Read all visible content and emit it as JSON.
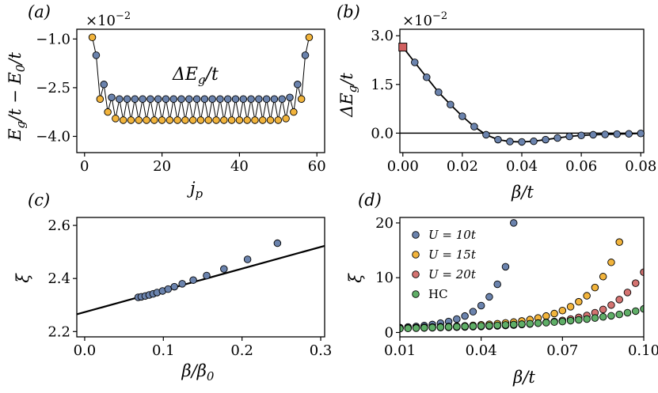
{
  "colors": {
    "blue": "#6b83ad",
    "orange": "#f2b43c",
    "red": "#d47371",
    "green": "#5fae67",
    "square": "#d16060"
  },
  "chart_data": [
    {
      "panel": "(a)",
      "type": "line",
      "xlabel": "j_p",
      "ylabel": "E_g/t − E_0/t",
      "scale_note": "×10^{−2}",
      "inset_label": "ΔE_g/t",
      "xlim": [
        -2,
        62
      ],
      "ylim": [
        -4.5,
        -0.7
      ],
      "xticks": [
        "0",
        "20",
        "40",
        "60"
      ],
      "xtick_values": [
        0,
        20,
        40,
        60
      ],
      "yticks": [
        "−1.0",
        "−2.5",
        "−4.0"
      ],
      "ytick_values": [
        -1.0,
        -2.5,
        -4.0
      ],
      "x": [
        2,
        3,
        4,
        5,
        6,
        7,
        8,
        9,
        10,
        11,
        12,
        13,
        14,
        15,
        16,
        17,
        18,
        19,
        20,
        21,
        22,
        23,
        24,
        25,
        26,
        27,
        28,
        29,
        30,
        31,
        32,
        33,
        34,
        35,
        36,
        37,
        38,
        39,
        40,
        41,
        42,
        43,
        44,
        45,
        46,
        47,
        48,
        49,
        50,
        51,
        52,
        53,
        54,
        55,
        56,
        57,
        58
      ],
      "y": [
        -0.95,
        -1.5,
        -2.85,
        -2.4,
        -3.25,
        -2.8,
        -3.45,
        -2.85,
        -3.5,
        -2.85,
        -3.5,
        -2.85,
        -3.5,
        -2.85,
        -3.5,
        -2.85,
        -3.5,
        -2.85,
        -3.5,
        -2.85,
        -3.5,
        -2.85,
        -3.5,
        -2.85,
        -3.5,
        -2.85,
        -3.5,
        -2.85,
        -3.5,
        -2.85,
        -3.5,
        -2.85,
        -3.5,
        -2.85,
        -3.5,
        -2.85,
        -3.5,
        -2.85,
        -3.5,
        -2.85,
        -3.5,
        -2.85,
        -3.5,
        -2.85,
        -3.5,
        -2.85,
        -3.5,
        -2.85,
        -3.5,
        -2.85,
        -3.45,
        -2.8,
        -3.25,
        -2.4,
        -2.85,
        -1.5,
        -0.95
      ]
    },
    {
      "panel": "(b)",
      "type": "line",
      "xlabel": "β/t",
      "ylabel": "ΔE_g/t",
      "scale_note": "×10^{−2}",
      "xlim": [
        -0.001,
        0.081
      ],
      "ylim": [
        -0.6,
        3.2
      ],
      "xticks": [
        "0.00",
        "0.02",
        "0.04",
        "0.06",
        "0.08"
      ],
      "xtick_values": [
        0.0,
        0.02,
        0.04,
        0.06,
        0.08
      ],
      "yticks": [
        "0.0",
        "1.5",
        "3.0"
      ],
      "ytick_values": [
        0.0,
        1.5,
        3.0
      ],
      "square_point": [
        0.0,
        2.65
      ],
      "x": [
        0.0,
        0.004,
        0.008,
        0.012,
        0.016,
        0.02,
        0.024,
        0.028,
        0.032,
        0.036,
        0.04,
        0.044,
        0.048,
        0.052,
        0.056,
        0.06,
        0.064,
        0.068,
        0.072,
        0.076,
        0.08
      ],
      "y": [
        2.65,
        2.18,
        1.72,
        1.26,
        0.88,
        0.52,
        0.2,
        -0.05,
        -0.2,
        -0.26,
        -0.27,
        -0.25,
        -0.2,
        -0.15,
        -0.1,
        -0.07,
        -0.05,
        -0.04,
        -0.03,
        -0.02,
        -0.01
      ],
      "reference_line": 0.0
    },
    {
      "panel": "(c)",
      "type": "scatter",
      "xlabel": "β/β_0",
      "ylabel": "ξ",
      "xlim": [
        -0.01,
        0.305
      ],
      "ylim": [
        2.18,
        2.63
      ],
      "xticks": [
        "0.0",
        "0.1",
        "0.2",
        "0.3"
      ],
      "xtick_values": [
        0.0,
        0.1,
        0.2,
        0.3
      ],
      "yticks": [
        "2.2",
        "2.4",
        "2.6"
      ],
      "ytick_values": [
        2.2,
        2.4,
        2.6
      ],
      "x": [
        0.068,
        0.072,
        0.077,
        0.082,
        0.087,
        0.092,
        0.099,
        0.106,
        0.114,
        0.124,
        0.138,
        0.155,
        0.177,
        0.207,
        0.245
      ],
      "y": [
        2.329,
        2.331,
        2.334,
        2.338,
        2.342,
        2.347,
        2.353,
        2.36,
        2.369,
        2.38,
        2.394,
        2.411,
        2.436,
        2.472,
        2.533
      ],
      "fit_line": {
        "x": [
          -0.01,
          0.305
        ],
        "y": [
          2.265,
          2.523
        ]
      }
    },
    {
      "panel": "(d)",
      "type": "scatter",
      "xlabel": "β/t",
      "ylabel": "ξ",
      "xlim": [
        0.01,
        0.1
      ],
      "ylim": [
        -0.8,
        21
      ],
      "xticks": [
        "0.01",
        "0.04",
        "0.07",
        "0.10"
      ],
      "xtick_values": [
        0.01,
        0.04,
        0.07,
        0.1
      ],
      "yticks": [
        "0",
        "10",
        "20"
      ],
      "ytick_values": [
        0,
        10,
        20
      ],
      "legend_position": "upper-left",
      "series": [
        {
          "name": "U = 10t",
          "color_key": "blue",
          "x": [
            0.01,
            0.013,
            0.016,
            0.019,
            0.022,
            0.025,
            0.028,
            0.031,
            0.034,
            0.037,
            0.04,
            0.043,
            0.046,
            0.049,
            0.052
          ],
          "y": [
            0.9,
            1.0,
            1.1,
            1.25,
            1.45,
            1.7,
            2.0,
            2.45,
            3.0,
            3.8,
            4.9,
            6.5,
            8.8,
            12.0,
            20.0
          ]
        },
        {
          "name": "U = 15t",
          "color_key": "orange",
          "x": [
            0.01,
            0.013,
            0.016,
            0.019,
            0.022,
            0.025,
            0.028,
            0.031,
            0.034,
            0.037,
            0.04,
            0.043,
            0.046,
            0.049,
            0.052,
            0.055,
            0.058,
            0.061,
            0.064,
            0.067,
            0.07,
            0.073,
            0.076,
            0.079,
            0.082,
            0.085,
            0.088,
            0.091
          ],
          "y": [
            0.8,
            0.85,
            0.9,
            0.95,
            1.0,
            1.05,
            1.1,
            1.15,
            1.2,
            1.3,
            1.4,
            1.5,
            1.6,
            1.75,
            1.9,
            2.1,
            2.35,
            2.65,
            3.0,
            3.45,
            4.0,
            4.7,
            5.6,
            6.7,
            8.2,
            10.2,
            12.8,
            16.5
          ]
        },
        {
          "name": "U = 20t",
          "color_key": "red",
          "x": [
            0.01,
            0.013,
            0.016,
            0.019,
            0.022,
            0.025,
            0.028,
            0.031,
            0.034,
            0.037,
            0.04,
            0.043,
            0.046,
            0.049,
            0.052,
            0.055,
            0.058,
            0.061,
            0.064,
            0.067,
            0.07,
            0.073,
            0.076,
            0.079,
            0.082,
            0.085,
            0.088,
            0.091,
            0.094,
            0.097,
            0.1
          ],
          "y": [
            0.75,
            0.78,
            0.8,
            0.83,
            0.86,
            0.9,
            0.93,
            0.97,
            1.0,
            1.05,
            1.1,
            1.15,
            1.2,
            1.28,
            1.35,
            1.45,
            1.55,
            1.7,
            1.85,
            2.0,
            2.2,
            2.45,
            2.75,
            3.1,
            3.6,
            4.2,
            5.0,
            6.0,
            7.3,
            9.0,
            11.0
          ]
        },
        {
          "name": "HC",
          "color_key": "green",
          "x": [
            0.01,
            0.013,
            0.016,
            0.019,
            0.022,
            0.025,
            0.028,
            0.031,
            0.034,
            0.037,
            0.04,
            0.043,
            0.046,
            0.049,
            0.052,
            0.055,
            0.058,
            0.061,
            0.064,
            0.067,
            0.07,
            0.073,
            0.076,
            0.079,
            0.082,
            0.085,
            0.088,
            0.091,
            0.094,
            0.097,
            0.1
          ],
          "y": [
            0.7,
            0.75,
            0.8,
            0.85,
            0.9,
            0.95,
            1.0,
            1.05,
            1.1,
            1.15,
            1.2,
            1.25,
            1.3,
            1.38,
            1.45,
            1.52,
            1.6,
            1.7,
            1.8,
            1.9,
            2.0,
            2.15,
            2.3,
            2.45,
            2.65,
            2.85,
            3.05,
            3.3,
            3.6,
            3.9,
            4.3
          ]
        }
      ]
    }
  ]
}
